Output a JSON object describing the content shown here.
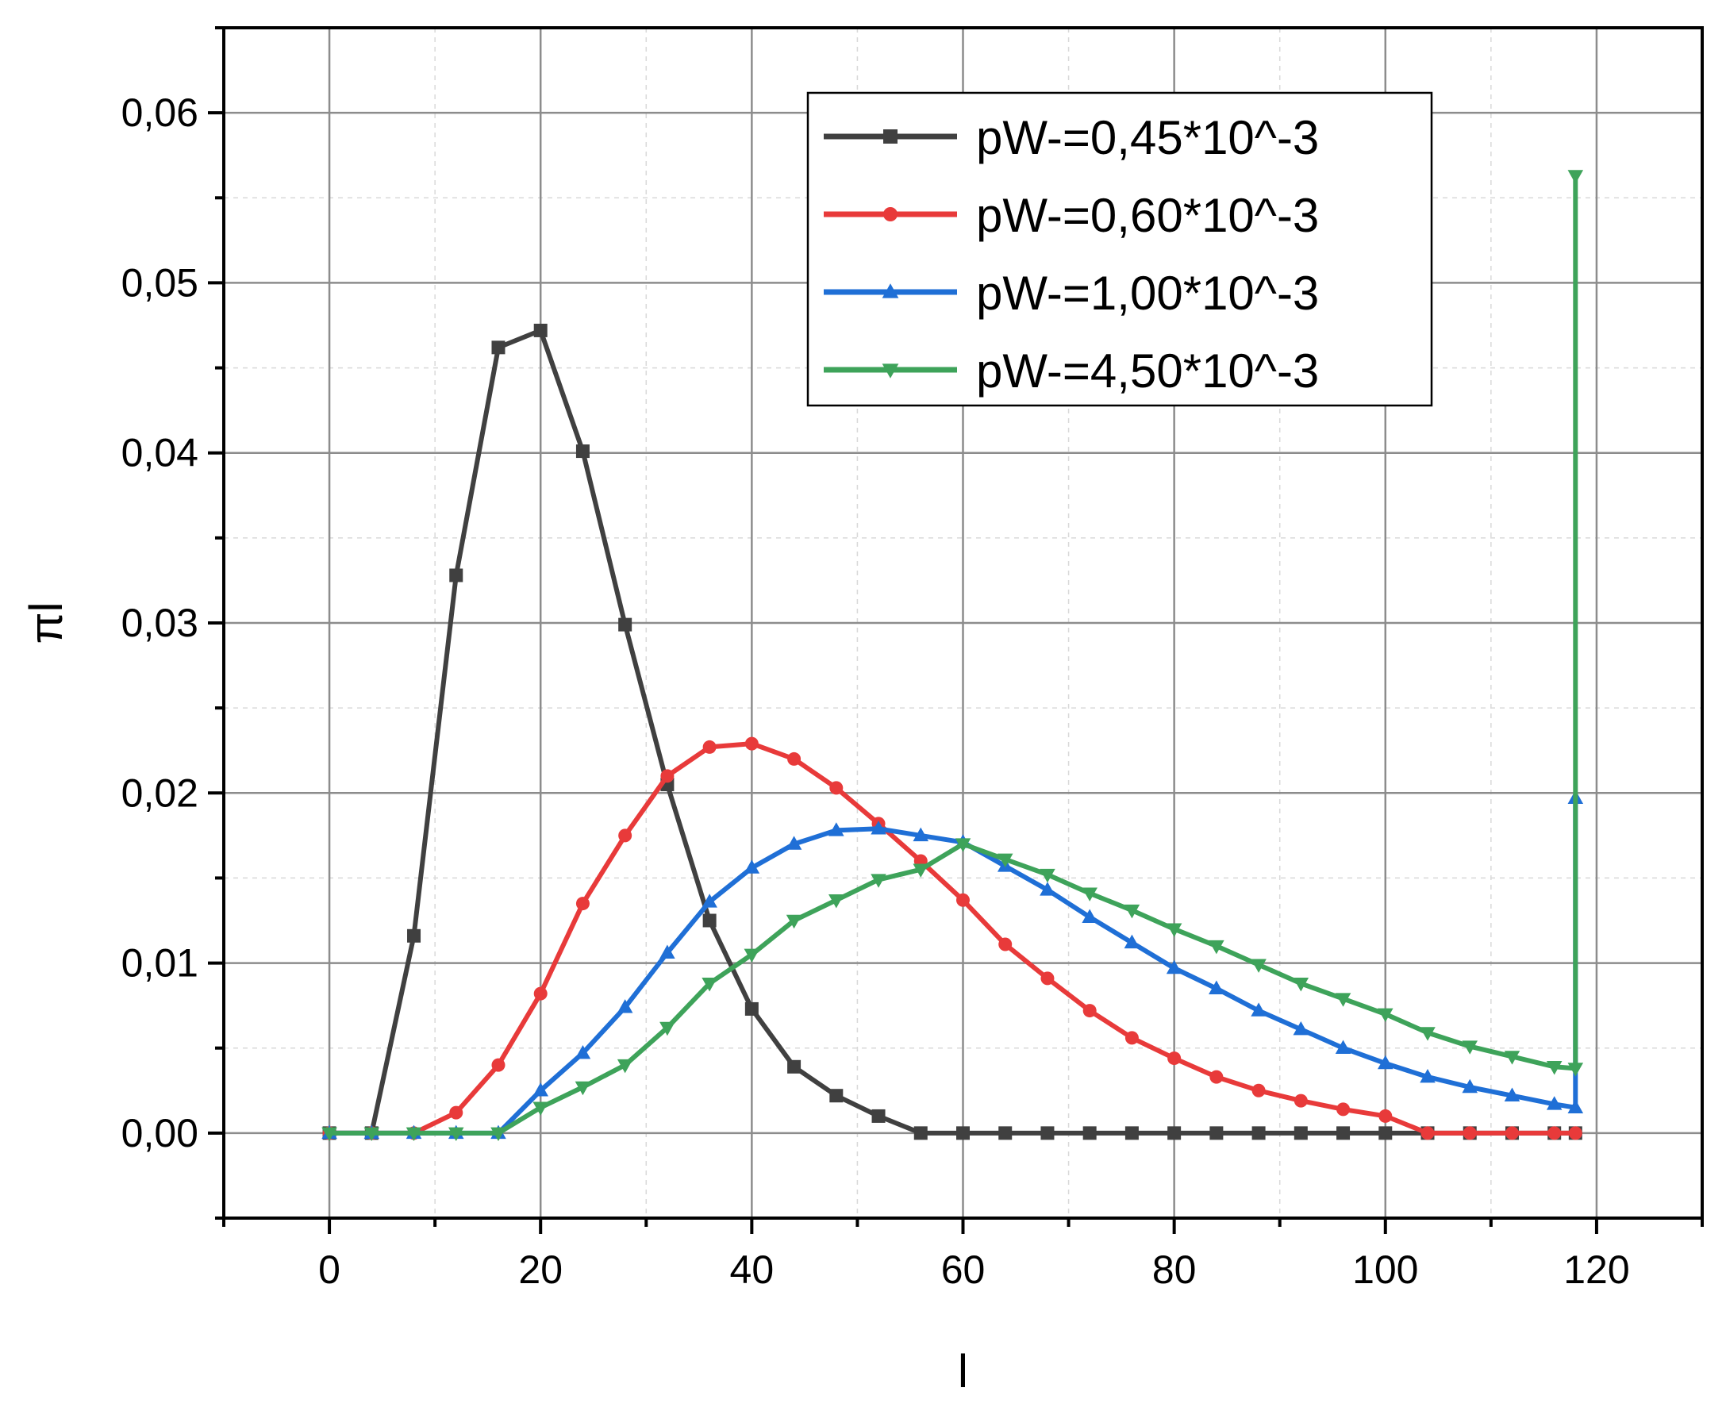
{
  "chart_data": {
    "type": "line",
    "title": "",
    "xlabel": "l",
    "ylabel": "πl",
    "xlim": [
      -10,
      130
    ],
    "ylim": [
      -0.005,
      0.065
    ],
    "x_ticks": [
      0,
      20,
      40,
      60,
      80,
      100,
      120
    ],
    "x_tick_labels": [
      "0",
      "20",
      "40",
      "60",
      "80",
      "100",
      "120"
    ],
    "y_ticks": [
      0,
      0.01,
      0.02,
      0.03,
      0.04,
      0.05,
      0.06
    ],
    "y_tick_labels": [
      "0,00",
      "0,01",
      "0,02",
      "0,03",
      "0,04",
      "0,05",
      "0,06"
    ],
    "grid": true,
    "legend_position": "top-right",
    "series": [
      {
        "name": "pW-=0,45*10^-3",
        "color": "#404040",
        "marker": "square",
        "x": [
          0,
          4,
          8,
          12,
          16,
          20,
          24,
          28,
          32,
          36,
          40,
          44,
          48,
          52,
          56,
          60,
          64,
          68,
          72,
          76,
          80,
          84,
          88,
          92,
          96,
          100,
          104,
          108,
          112,
          116,
          118
        ],
        "y": [
          0,
          0,
          0.0116,
          0.0328,
          0.0462,
          0.0472,
          0.0401,
          0.0299,
          0.0205,
          0.0125,
          0.0073,
          0.0039,
          0.0022,
          0.001,
          0,
          0,
          0,
          0,
          0,
          0,
          0,
          0,
          0,
          0,
          0,
          0,
          0,
          0,
          0,
          0,
          0
        ]
      },
      {
        "name": "pW-=0,60*10^-3",
        "color": "#e83a3a",
        "marker": "circle",
        "x": [
          0,
          4,
          8,
          12,
          16,
          20,
          24,
          28,
          32,
          36,
          40,
          44,
          48,
          52,
          56,
          60,
          64,
          68,
          72,
          76,
          80,
          84,
          88,
          92,
          96,
          100,
          104,
          108,
          112,
          116,
          118
        ],
        "y": [
          0,
          0,
          0,
          0.0012,
          0.004,
          0.0082,
          0.0135,
          0.0175,
          0.021,
          0.0227,
          0.0229,
          0.022,
          0.0203,
          0.0182,
          0.016,
          0.0137,
          0.0111,
          0.0091,
          0.0072,
          0.0056,
          0.0044,
          0.0033,
          0.0025,
          0.0019,
          0.0014,
          0.001,
          0,
          0,
          0,
          0,
          0
        ]
      },
      {
        "name": "pW-=1,00*10^-3",
        "color": "#1f6fd6",
        "marker": "triangle-up",
        "x": [
          0,
          4,
          8,
          12,
          16,
          20,
          24,
          28,
          32,
          36,
          40,
          44,
          48,
          52,
          56,
          60,
          64,
          68,
          72,
          76,
          80,
          84,
          88,
          92,
          96,
          100,
          104,
          108,
          112,
          116,
          118,
          118
        ],
        "y": [
          0,
          0,
          0,
          0,
          0,
          0.0025,
          0.0047,
          0.0074,
          0.0106,
          0.0136,
          0.0156,
          0.017,
          0.0178,
          0.0179,
          0.0175,
          0.0171,
          0.0157,
          0.0143,
          0.0127,
          0.0112,
          0.0097,
          0.0085,
          0.0072,
          0.0061,
          0.005,
          0.0041,
          0.0033,
          0.0027,
          0.0022,
          0.0017,
          0.0015,
          0.0197
        ]
      },
      {
        "name": "pW-=4,50*10^-3",
        "color": "#3ea35a",
        "marker": "triangle-down",
        "x": [
          0,
          4,
          8,
          12,
          16,
          20,
          24,
          28,
          32,
          36,
          40,
          44,
          48,
          52,
          56,
          60,
          64,
          68,
          72,
          76,
          80,
          84,
          88,
          92,
          96,
          100,
          104,
          108,
          112,
          116,
          118,
          118
        ],
        "y": [
          0,
          0,
          0,
          0,
          0,
          0.0015,
          0.0027,
          0.004,
          0.0062,
          0.0088,
          0.0105,
          0.0125,
          0.0137,
          0.0149,
          0.0155,
          0.017,
          0.0161,
          0.0152,
          0.0141,
          0.0131,
          0.012,
          0.011,
          0.0099,
          0.0088,
          0.0079,
          0.007,
          0.0059,
          0.0051,
          0.0045,
          0.0039,
          0.0038,
          0.0563
        ]
      }
    ]
  }
}
